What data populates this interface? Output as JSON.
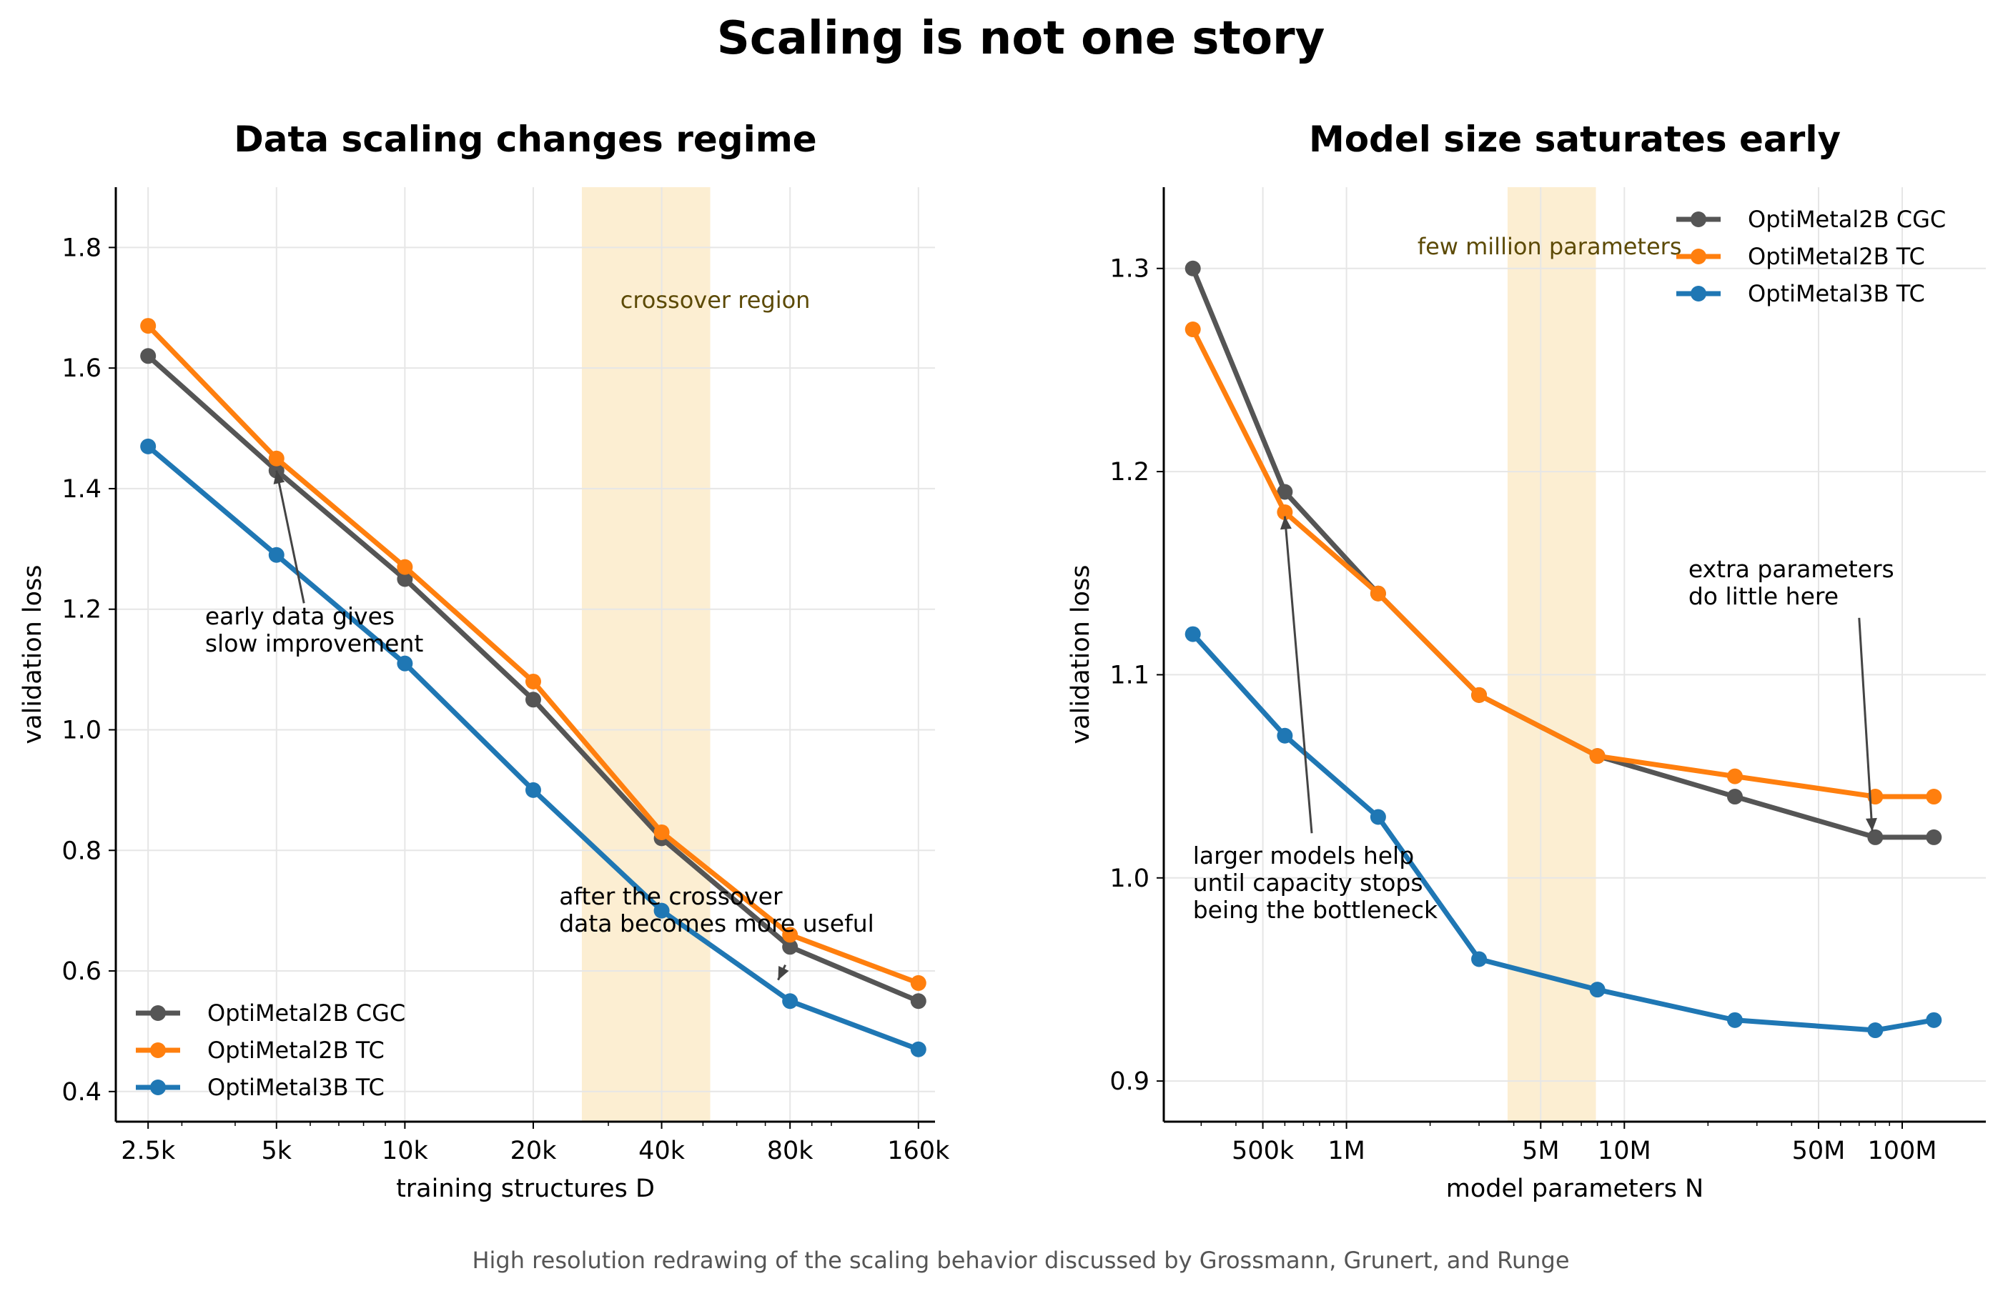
{
  "figure": {
    "title": "Scaling is not one story",
    "caption": "High resolution redrawing of the scaling behavior discussed by Grossmann, Grunert, and Runge"
  },
  "colors": {
    "cgc": "#555555",
    "tc2b": "#ff7f0e",
    "tc3b": "#1f77b4",
    "band": "#f5c76a",
    "band_text": "#5c4a06",
    "grid": "#e6e6e6"
  },
  "chart_data": [
    {
      "type": "line",
      "title": "Data scaling changes regime",
      "xlabel": "training structures D",
      "ylabel": "validation loss",
      "xscale": "log",
      "xlim": [
        2100,
        175000
      ],
      "ylim": [
        0.35,
        1.9
      ],
      "x_ticks": [
        2500,
        5000,
        10000,
        20000,
        40000,
        80000,
        160000
      ],
      "x_tick_labels": [
        "2.5k",
        "5k",
        "10k",
        "20k",
        "40k",
        "80k",
        "160k"
      ],
      "y_ticks": [
        0.4,
        0.6,
        0.8,
        1.0,
        1.2,
        1.4,
        1.6,
        1.8
      ],
      "y_tick_labels": [
        "0.4",
        "0.6",
        "0.8",
        "1.0",
        "1.2",
        "1.4",
        "1.6",
        "1.8"
      ],
      "grid": true,
      "legend": "lower-left",
      "x": [
        2500,
        5000,
        10000,
        20000,
        40000,
        80000,
        160000
      ],
      "series": [
        {
          "name": "OptiMetal2B CGC",
          "color_key": "cgc",
          "values": [
            1.62,
            1.43,
            1.25,
            1.05,
            0.82,
            0.64,
            0.55
          ]
        },
        {
          "name": "OptiMetal2B TC",
          "color_key": "tc2b",
          "values": [
            1.67,
            1.45,
            1.27,
            1.08,
            0.83,
            0.66,
            0.58
          ]
        },
        {
          "name": "OptiMetal3B TC",
          "color_key": "tc3b",
          "values": [
            1.47,
            1.29,
            1.11,
            0.9,
            0.7,
            0.55,
            0.47
          ]
        }
      ],
      "band": {
        "x0": 26000,
        "x1": 52000,
        "label": "crossover region",
        "label_xy": [
          32000,
          1.7
        ]
      },
      "annotations": [
        {
          "lines": [
            "early data gives",
            "slow improvement"
          ],
          "text_xy": [
            3400,
            1.175
          ],
          "arrow_from": [
            5800,
            1.21
          ],
          "arrow_to": [
            5000,
            1.43
          ]
        },
        {
          "lines": [
            "after the crossover",
            "data becomes more useful"
          ],
          "text_xy": [
            23000,
            0.71
          ],
          "arrow_from": [
            78000,
            0.61
          ],
          "arrow_to": [
            75000,
            0.585
          ]
        }
      ]
    },
    {
      "type": "line",
      "title": "Model size saturates early",
      "xlabel": "model parameters N",
      "ylabel": "validation loss",
      "xscale": "log",
      "xlim": [
        220000,
        200000000
      ],
      "ylim": [
        0.88,
        1.34
      ],
      "x_ticks": [
        500000,
        1000000,
        5000000,
        10000000,
        50000000,
        100000000
      ],
      "x_tick_labels": [
        "500k",
        "1M",
        "5M",
        "10M",
        "50M",
        "100M"
      ],
      "y_ticks": [
        0.9,
        1.0,
        1.1,
        1.2,
        1.3
      ],
      "y_tick_labels": [
        "0.9",
        "1.0",
        "1.1",
        "1.2",
        "1.3"
      ],
      "grid": true,
      "legend": "top-right",
      "series": [
        {
          "name": "OptiMetal2B CGC",
          "color_key": "cgc",
          "x": [
            280000,
            600000,
            1300000,
            3000000,
            8000000,
            25000000,
            80000000,
            130000000
          ],
          "values": [
            1.3,
            1.19,
            1.14,
            1.09,
            1.06,
            1.04,
            1.02,
            1.02
          ]
        },
        {
          "name": "OptiMetal2B TC",
          "color_key": "tc2b",
          "x": [
            280000,
            600000,
            1300000,
            3000000,
            8000000,
            25000000,
            80000000,
            130000000
          ],
          "values": [
            1.27,
            1.18,
            1.14,
            1.09,
            1.06,
            1.05,
            1.04,
            1.04
          ]
        },
        {
          "name": "OptiMetal3B TC",
          "color_key": "tc3b",
          "x": [
            280000,
            600000,
            1300000,
            3000000,
            8000000,
            25000000,
            80000000,
            130000000
          ],
          "values": [
            1.12,
            1.07,
            1.03,
            0.96,
            0.945,
            0.93,
            0.925,
            0.93
          ]
        }
      ],
      "band": {
        "x0": 3800000,
        "x1": 7900000,
        "label": "few million parameters",
        "label_xy": [
          1800000,
          1.307
        ]
      },
      "annotations": [
        {
          "lines": [
            "larger models help",
            "until capacity stops",
            "being the bottleneck"
          ],
          "text_xy": [
            280000,
            1.007
          ],
          "arrow_from": [
            750000,
            1.022
          ],
          "arrow_to": [
            600000,
            1.178
          ]
        },
        {
          "lines": [
            "extra parameters",
            "do little here"
          ],
          "text_xy": [
            17000000,
            1.148
          ],
          "arrow_from": [
            70000000,
            1.128
          ],
          "arrow_to": [
            78000000,
            1.023
          ]
        }
      ]
    }
  ]
}
